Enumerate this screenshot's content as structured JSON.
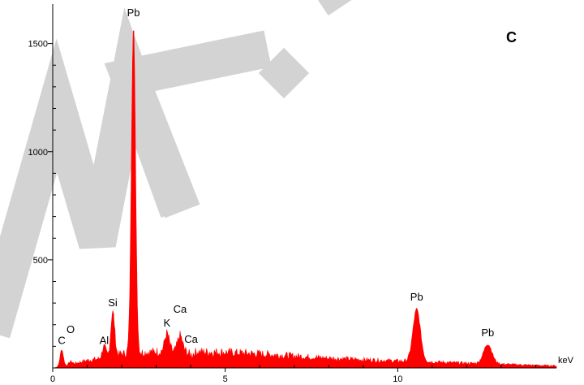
{
  "chart_data": {
    "type": "area",
    "panel_label": "C",
    "xlabel": "keV",
    "ylabel": "",
    "xlim": [
      0,
      14.6
    ],
    "ylim": [
      0,
      1600
    ],
    "x_ticks": [
      0,
      5,
      10
    ],
    "y_ticks": [
      500,
      1000,
      1500
    ],
    "series_color": "#ff0000",
    "baseline_counts": [
      [
        0.0,
        0
      ],
      [
        0.5,
        15
      ],
      [
        1.0,
        35
      ],
      [
        1.5,
        45
      ],
      [
        2.0,
        65
      ],
      [
        3.0,
        75
      ],
      [
        4.0,
        75
      ],
      [
        5.0,
        72
      ],
      [
        6.0,
        65
      ],
      [
        7.0,
        55
      ],
      [
        8.0,
        45
      ],
      [
        9.0,
        38
      ],
      [
        10.0,
        32
      ],
      [
        11.0,
        28
      ],
      [
        12.0,
        22
      ],
      [
        13.0,
        18
      ],
      [
        14.0,
        12
      ],
      [
        14.6,
        10
      ]
    ],
    "peaks": [
      {
        "element": "C",
        "kev": 0.26,
        "counts": 85
      },
      {
        "element": "O",
        "kev": 0.52,
        "counts": 30
      },
      {
        "element": "Al",
        "kev": 1.49,
        "counts": 100
      },
      {
        "element": "Si",
        "kev": 1.74,
        "counts": 260
      },
      {
        "element": "Pb",
        "kev": 2.34,
        "counts": 1590
      },
      {
        "element": "K",
        "kev": 3.31,
        "counts": 160
      },
      {
        "element": "Ca",
        "kev": 3.69,
        "counts": 150
      },
      {
        "element": "Ca",
        "kev": 4.01,
        "counts": 60
      },
      {
        "element": "Pb",
        "kev": 10.55,
        "counts": 270
      },
      {
        "element": "Pb",
        "kev": 12.61,
        "counts": 110
      }
    ],
    "peak_labels": [
      {
        "text": "C",
        "kev": 0.26,
        "counts": 85
      },
      {
        "text": "O",
        "kev": 0.52,
        "counts": 135
      },
      {
        "text": "Al",
        "kev": 1.49,
        "counts": 85
      },
      {
        "text": "Si",
        "kev": 1.74,
        "counts": 260
      },
      {
        "text": "Pb",
        "kev": 2.34,
        "counts": 1600
      },
      {
        "text": "K",
        "kev": 3.31,
        "counts": 165
      },
      {
        "text": "Ca",
        "kev": 3.69,
        "counts": 230
      },
      {
        "text": "Ca",
        "kev": 4.01,
        "counts": 90
      },
      {
        "text": "Pb",
        "kev": 10.55,
        "counts": 285
      },
      {
        "text": "Pb",
        "kev": 12.61,
        "counts": 120
      }
    ]
  }
}
